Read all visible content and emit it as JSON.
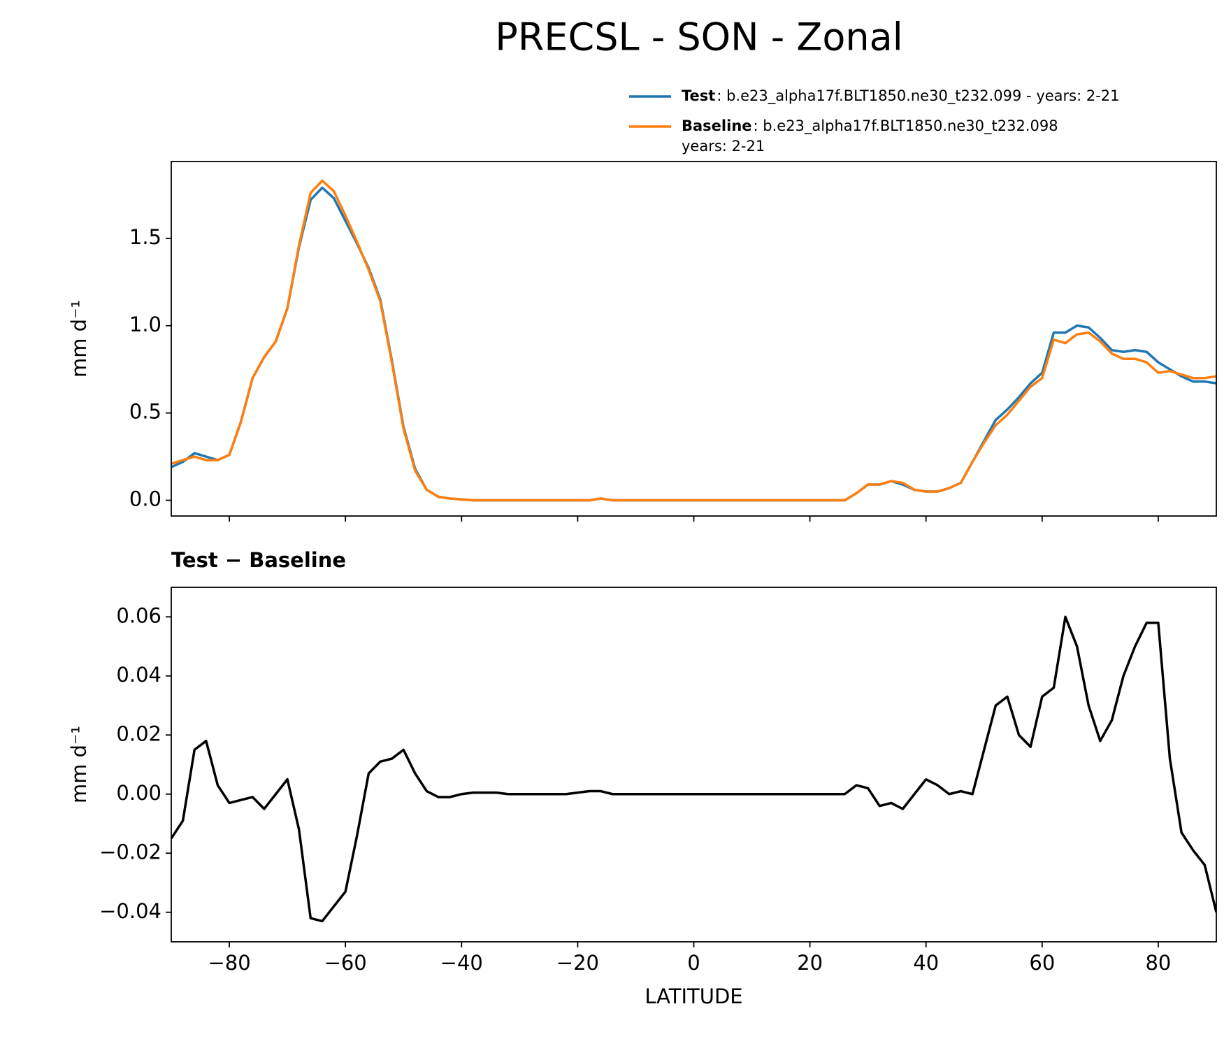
{
  "chart_data": [
    {
      "type": "line",
      "title": "PRECSL - SON - Zonal",
      "ylabel": "mm d⁻¹",
      "x": [
        -90,
        -88,
        -86,
        -84,
        -82,
        -80,
        -78,
        -76,
        -74,
        -72,
        -70,
        -68,
        -66,
        -64,
        -62,
        -60,
        -58,
        -56,
        -54,
        -52,
        -50,
        -48,
        -46,
        -44,
        -42,
        -40,
        -38,
        -36,
        -34,
        -32,
        -30,
        -28,
        -26,
        -24,
        -22,
        -20,
        -18,
        -16,
        -14,
        -12,
        -10,
        -8,
        -6,
        -4,
        -2,
        0,
        2,
        4,
        6,
        8,
        10,
        12,
        14,
        16,
        18,
        20,
        22,
        24,
        26,
        28,
        30,
        32,
        34,
        36,
        38,
        40,
        42,
        44,
        46,
        48,
        50,
        52,
        54,
        56,
        58,
        60,
        62,
        64,
        66,
        68,
        70,
        72,
        74,
        76,
        78,
        80,
        82,
        84,
        86,
        88,
        90
      ],
      "series": [
        {
          "name": "Test",
          "description": [
            ": b.e23_alpha17f.BLT1850.ne30_t232.099 - years: 2-21"
          ],
          "color": "#1f77b4",
          "values": [
            0.19,
            0.22,
            0.27,
            0.25,
            0.23,
            0.26,
            0.45,
            0.7,
            0.82,
            0.91,
            1.1,
            1.45,
            1.72,
            1.79,
            1.73,
            1.6,
            1.47,
            1.33,
            1.15,
            0.8,
            0.42,
            0.18,
            0.06,
            0.02,
            0.01,
            0.005,
            0,
            0,
            0,
            0,
            0,
            0,
            0,
            0,
            0,
            0,
            0,
            0.01,
            0,
            0,
            0,
            0,
            0,
            0,
            0,
            0,
            0,
            0,
            0,
            0,
            0,
            0,
            0,
            0,
            0,
            0,
            0,
            0,
            0,
            0.04,
            0.09,
            0.09,
            0.11,
            0.09,
            0.06,
            0.05,
            0.05,
            0.07,
            0.1,
            0.22,
            0.34,
            0.46,
            0.52,
            0.59,
            0.67,
            0.73,
            0.96,
            0.96,
            1.0,
            0.99,
            0.93,
            0.86,
            0.85,
            0.86,
            0.85,
            0.79,
            0.75,
            0.71,
            0.68,
            0.68,
            0.67
          ]
        },
        {
          "name": "Baseline",
          "description": [
            ": b.e23_alpha17f.BLT1850.ne30_t232.098",
            "years: 2-21"
          ],
          "color": "#ff7f0e",
          "values": [
            0.21,
            0.23,
            0.25,
            0.23,
            0.23,
            0.26,
            0.45,
            0.7,
            0.82,
            0.91,
            1.1,
            1.46,
            1.76,
            1.83,
            1.77,
            1.63,
            1.48,
            1.32,
            1.14,
            0.79,
            0.41,
            0.17,
            0.06,
            0.02,
            0.01,
            0.005,
            0,
            0,
            0,
            0,
            0,
            0,
            0,
            0,
            0,
            0,
            0,
            0.01,
            0,
            0,
            0,
            0,
            0,
            0,
            0,
            0,
            0,
            0,
            0,
            0,
            0,
            0,
            0,
            0,
            0,
            0,
            0,
            0,
            0,
            0.04,
            0.09,
            0.09,
            0.11,
            0.1,
            0.06,
            0.05,
            0.05,
            0.07,
            0.1,
            0.22,
            0.33,
            0.43,
            0.49,
            0.57,
            0.65,
            0.7,
            0.92,
            0.9,
            0.95,
            0.96,
            0.91,
            0.84,
            0.81,
            0.81,
            0.79,
            0.73,
            0.74,
            0.72,
            0.7,
            0.7,
            0.71
          ]
        }
      ],
      "xlim": [
        -90,
        90
      ],
      "xticks": [
        -80,
        -60,
        -40,
        -20,
        0,
        20,
        40,
        60,
        80
      ],
      "ylim": [
        -0.09,
        1.94
      ],
      "yticks": [
        {
          "value": 0,
          "label": "0.0"
        },
        {
          "value": 0.5,
          "label": "0.5"
        },
        {
          "value": 1,
          "label": "1.0"
        },
        {
          "value": 1.5,
          "label": "1.5"
        }
      ]
    },
    {
      "type": "line",
      "title": "Test − Baseline",
      "ylabel": "mm d⁻¹",
      "xlabel": "LATITUDE",
      "x": [
        -90,
        -88,
        -86,
        -84,
        -82,
        -80,
        -78,
        -76,
        -74,
        -72,
        -70,
        -68,
        -66,
        -64,
        -62,
        -60,
        -58,
        -56,
        -54,
        -52,
        -50,
        -48,
        -46,
        -44,
        -42,
        -40,
        -38,
        -36,
        -34,
        -32,
        -30,
        -28,
        -26,
        -24,
        -22,
        -20,
        -18,
        -16,
        -14,
        -12,
        -10,
        -8,
        -6,
        -4,
        -2,
        0,
        2,
        4,
        6,
        8,
        10,
        12,
        14,
        16,
        18,
        20,
        22,
        24,
        26,
        28,
        30,
        32,
        34,
        36,
        38,
        40,
        42,
        44,
        46,
        48,
        50,
        52,
        54,
        56,
        58,
        60,
        62,
        64,
        66,
        68,
        70,
        72,
        74,
        76,
        78,
        80,
        82,
        84,
        86,
        88,
        90
      ],
      "series": [
        {
          "color": "#000000",
          "values": [
            -0.015,
            -0.009,
            0.015,
            0.018,
            0.003,
            -0.003,
            -0.002,
            -0.001,
            -0.005,
            0.0,
            0.005,
            -0.012,
            -0.042,
            -0.043,
            -0.038,
            -0.033,
            -0.014,
            0.007,
            0.011,
            0.012,
            0.015,
            0.007,
            0.001,
            -0.001,
            -0.001,
            0.0,
            0.0005,
            0.0005,
            0.0005,
            0,
            0,
            0,
            0,
            0,
            0,
            0.0005,
            0.001,
            0.001,
            0,
            0,
            0,
            0,
            0,
            0,
            0,
            0,
            0,
            0,
            0,
            0,
            0,
            0,
            0,
            0,
            0,
            0,
            0,
            0,
            0,
            0.003,
            0.002,
            -0.004,
            -0.003,
            -0.005,
            0.0,
            0.005,
            0.003,
            0.0,
            0.001,
            0.0,
            0.015,
            0.03,
            0.033,
            0.02,
            0.016,
            0.033,
            0.036,
            0.06,
            0.05,
            0.03,
            0.018,
            0.025,
            0.04,
            0.05,
            0.058,
            0.058,
            0.012,
            -0.013,
            -0.019,
            -0.024,
            -0.04
          ]
        }
      ],
      "xlim": [
        -90,
        90
      ],
      "xticks": [
        {
          "value": -80,
          "label": "−80"
        },
        {
          "value": -60,
          "label": "−60"
        },
        {
          "value": -40,
          "label": "−40"
        },
        {
          "value": -20,
          "label": "−20"
        },
        0,
        20,
        40,
        60,
        80
      ],
      "ylim": [
        -0.05,
        0.07
      ],
      "yticks": [
        {
          "value": -0.04,
          "label": "−0.04"
        },
        {
          "value": -0.02,
          "label": "−0.02"
        },
        {
          "value": 0,
          "label": "0.00"
        },
        {
          "value": 0.02,
          "label": "0.02"
        },
        {
          "value": 0.04,
          "label": "0.04"
        },
        {
          "value": 0.06,
          "label": "0.06"
        }
      ]
    }
  ]
}
